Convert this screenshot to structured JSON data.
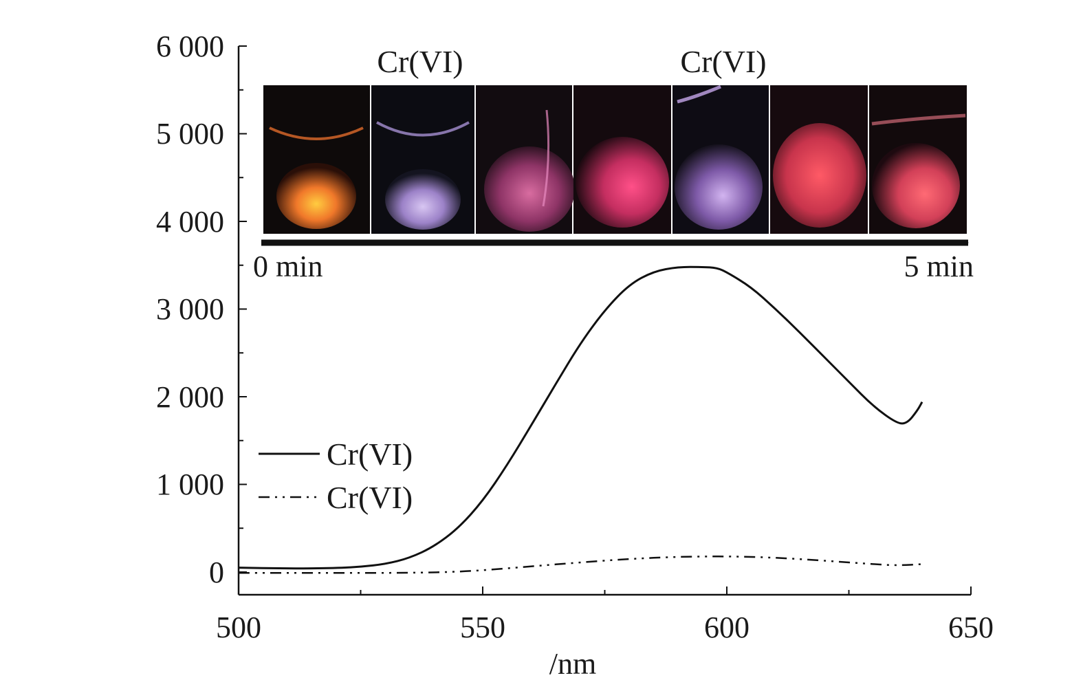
{
  "chart_data": {
    "type": "line",
    "title": "",
    "xlabel": "/nm",
    "ylabel": "",
    "xlim": [
      500,
      650
    ],
    "ylim": [
      -250,
      6000
    ],
    "x_ticks": [
      500,
      550,
      600,
      650
    ],
    "x_tick_labels": [
      "500",
      "550",
      "600",
      "650"
    ],
    "y_ticks": [
      0,
      1000,
      2000,
      3000,
      4000,
      5000,
      6000
    ],
    "y_tick_labels": [
      "0",
      "1 000",
      "2 000",
      "3 000",
      "4 000",
      "5 000",
      "6 000"
    ],
    "grid": false,
    "legend_position": "left",
    "series": [
      {
        "name": "Cr(VI)",
        "style": "solid",
        "color": "#111111",
        "x": [
          500,
          510,
          520,
          525,
          530,
          535,
          540,
          545,
          550,
          555,
          560,
          565,
          570,
          575,
          580,
          585,
          590,
          595,
          598,
          600,
          605,
          610,
          615,
          620,
          625,
          630,
          635,
          637,
          639,
          640
        ],
        "y": [
          50,
          40,
          45,
          60,
          90,
          160,
          290,
          500,
          810,
          1220,
          1680,
          2150,
          2610,
          2990,
          3280,
          3430,
          3480,
          3480,
          3470,
          3420,
          3250,
          3000,
          2730,
          2450,
          2170,
          1890,
          1690,
          1700,
          1840,
          1940
        ]
      },
      {
        "name": "Cr(VI)",
        "style": "dash-dot-dot",
        "color": "#111111",
        "x": [
          500,
          510,
          520,
          530,
          540,
          545,
          550,
          560,
          570,
          580,
          590,
          600,
          610,
          620,
          630,
          635,
          640
        ],
        "y": [
          -10,
          -10,
          -10,
          -10,
          -5,
          5,
          20,
          65,
          110,
          150,
          175,
          180,
          165,
          130,
          90,
          75,
          90
        ]
      }
    ],
    "inset": {
      "labels": [
        "Cr(VI)",
        "Cr(VI)"
      ],
      "time_start": "0 min",
      "time_end": "5 min",
      "frames": [
        {
          "color": "#f0782a"
        },
        {
          "color": "#b89ad8"
        },
        {
          "color": "#c0508e"
        },
        {
          "color": "#e23a6e"
        },
        {
          "color": "#b58ad8"
        },
        {
          "color": "#e2485e"
        },
        {
          "color": "#e55066"
        }
      ]
    }
  }
}
